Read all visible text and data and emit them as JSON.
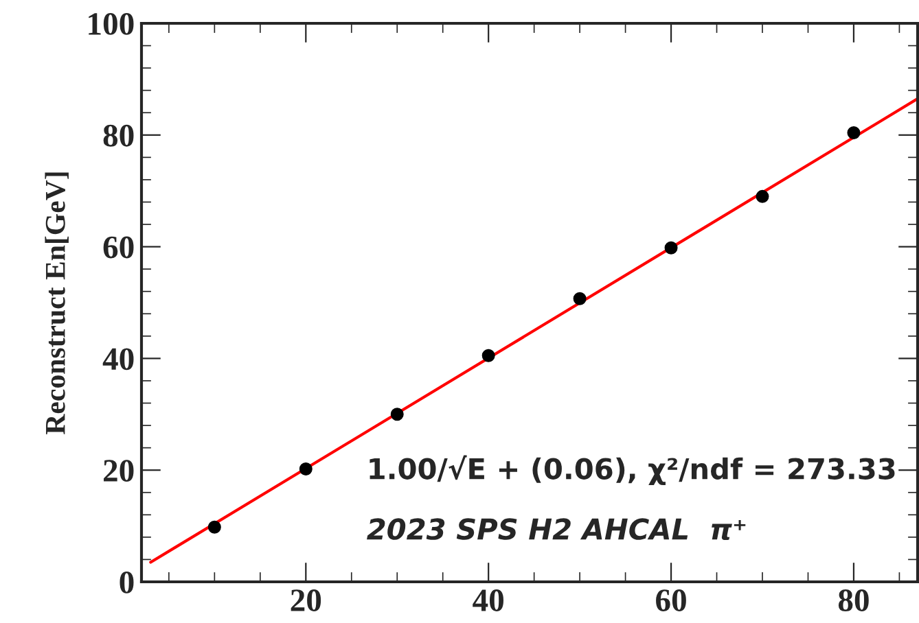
{
  "chart_data": {
    "type": "scatter",
    "ylabel": "Reconstruct En[GeV]",
    "series": [
      {
        "color": "#000000",
        "x": [
          10,
          20,
          30,
          40,
          50,
          60,
          70,
          80
        ],
        "values": [
          9.8,
          20.2,
          30,
          40.5,
          50.7,
          59.8,
          69,
          80.4
        ]
      },
      {
        "type": "line",
        "marker": "none",
        "color": "#ff0000",
        "x": [
          3,
          87
        ],
        "values": [
          3.5,
          86.5
        ]
      }
    ],
    "xlim": [
      2,
      87
    ],
    "ylim": [
      0,
      100
    ],
    "xticks": [
      20,
      40,
      60,
      80
    ],
    "yticks": [
      0,
      20,
      40,
      60,
      80,
      100
    ],
    "grid": false,
    "marker": "circle",
    "annotations": [
      "1.00/√E + (0.06), χ²/ndf = 273.33",
      "2023 SPS H2 AHCAL  π⁺"
    ]
  }
}
